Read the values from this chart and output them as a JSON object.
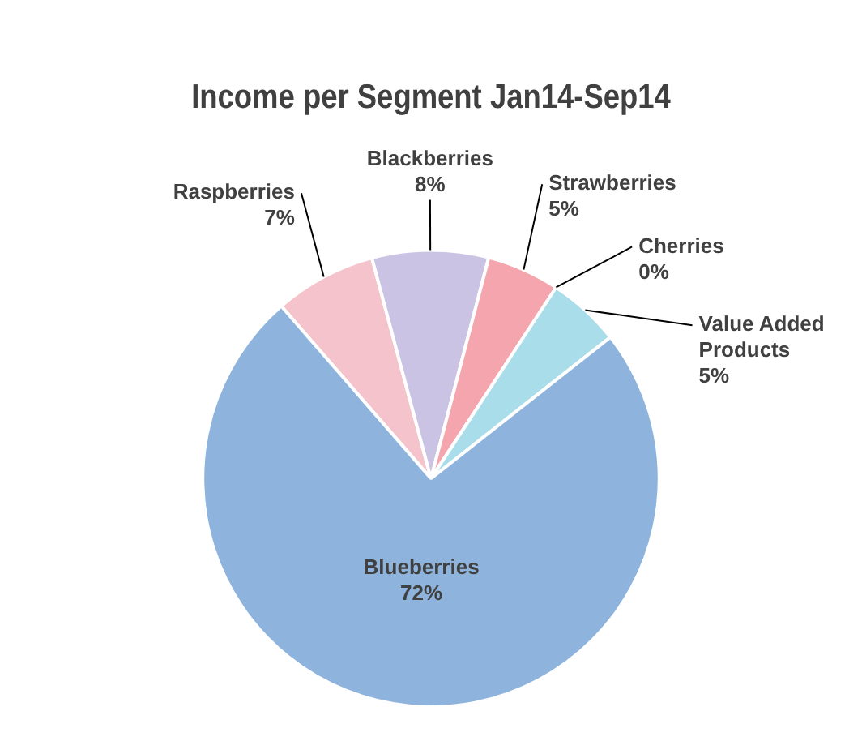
{
  "chart_data": {
    "type": "pie",
    "title": "Income per Segment Jan14-Sep14",
    "categories": [
      "Raspberries",
      "Blackberries",
      "Strawberries",
      "Cherries",
      "Value Added Products",
      "Blueberries"
    ],
    "values": [
      7,
      8,
      5,
      0,
      5,
      72
    ],
    "value_labels": [
      "7%",
      "8%",
      "5%",
      "0%",
      "5%",
      "72%"
    ],
    "colors": [
      "#f4c3cb",
      "#cbc3e3",
      "#f4a5ad",
      "#e07a80",
      "#a9dde9",
      "#8eb4de"
    ],
    "legend": false
  }
}
